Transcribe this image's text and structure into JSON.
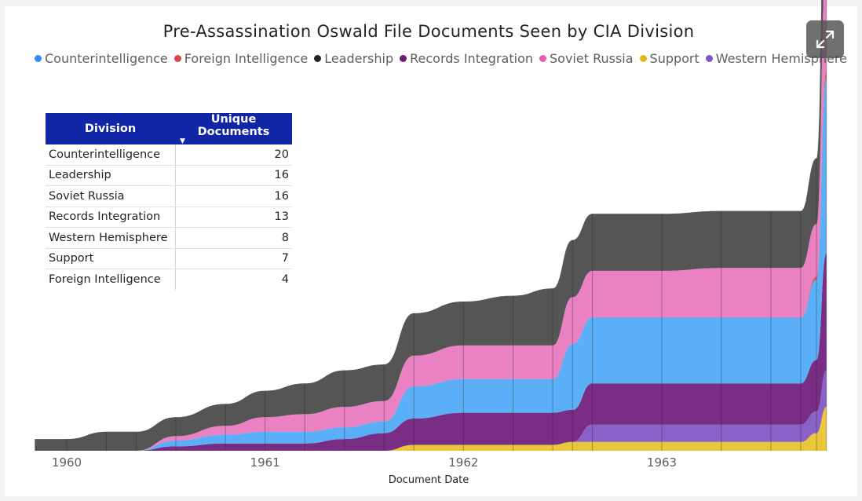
{
  "chart_data": {
    "type": "area",
    "subtype": "ribbon (streamgraph) chart",
    "title": "Pre-Assassination Oswald File Documents Seen by CIA Division",
    "xlabel": "Document Date",
    "ylabel": "",
    "x_ticks": [
      "1960",
      "1961",
      "1962",
      "1963"
    ],
    "legend_position": "top",
    "x": [
      1959.84,
      1960.0,
      1960.2,
      1960.35,
      1960.55,
      1960.8,
      1961.0,
      1961.2,
      1961.4,
      1961.6,
      1961.75,
      1962.0,
      1962.25,
      1962.45,
      1962.55,
      1962.65,
      1963.0,
      1963.3,
      1963.55,
      1963.7,
      1963.78,
      1963.83
    ],
    "ylim": [
      0,
      24
    ],
    "series": [
      {
        "name": "Support",
        "color": "#e8c12a",
        "values": [
          0,
          0,
          0,
          0,
          0,
          0,
          0,
          0,
          0,
          0,
          0.4,
          0.4,
          0.4,
          0.4,
          0.6,
          0.6,
          0.6,
          0.6,
          0.6,
          0.6,
          1.2,
          3.0
        ]
      },
      {
        "name": "Western Hemisphere",
        "color": "#7f55c2",
        "values": [
          0,
          0,
          0,
          0,
          0,
          0,
          0,
          0,
          0,
          0,
          0,
          0,
          0,
          0,
          0,
          1.2,
          1.2,
          1.2,
          1.2,
          1.2,
          1.5,
          2.5
        ]
      },
      {
        "name": "Records Integration",
        "color": "#6e1b7a",
        "values": [
          0,
          0,
          0,
          0,
          0.3,
          0.5,
          0.5,
          0.5,
          0.8,
          1.2,
          1.8,
          2.2,
          2.2,
          2.2,
          2.2,
          2.8,
          2.8,
          2.8,
          2.8,
          2.8,
          3.5,
          8.0
        ]
      },
      {
        "name": "Counterintelligence",
        "color": "#4da8f5",
        "values": [
          0,
          0,
          0,
          0,
          0.4,
          0.6,
          0.8,
          0.8,
          0.8,
          0.8,
          2.2,
          2.3,
          2.3,
          2.3,
          4.5,
          4.5,
          4.5,
          4.5,
          4.5,
          4.5,
          5.5,
          12.0
        ]
      },
      {
        "name": "Foreign Intelligence",
        "color": "#d64550",
        "values": [
          0,
          0,
          0,
          0,
          0,
          0,
          0,
          0,
          0,
          0,
          0,
          0,
          0,
          0,
          0,
          0,
          0,
          0,
          0,
          0,
          0.2,
          0.5
        ]
      },
      {
        "name": "Soviet Russia",
        "color": "#e776be",
        "values": [
          0,
          0,
          0,
          0,
          0.3,
          0.6,
          1.0,
          1.2,
          1.4,
          1.4,
          2.1,
          2.3,
          2.3,
          2.3,
          3.2,
          3.2,
          3.2,
          3.4,
          3.4,
          3.4,
          3.6,
          8.0
        ]
      },
      {
        "name": "Leadership",
        "color": "#474747",
        "values": [
          0.8,
          0.8,
          1.3,
          1.3,
          1.3,
          1.5,
          1.8,
          2.1,
          2.5,
          2.5,
          2.9,
          3.0,
          3.4,
          3.9,
          3.9,
          3.9,
          3.9,
          3.9,
          3.9,
          3.9,
          4.5,
          9.0
        ]
      }
    ]
  },
  "legend": [
    {
      "label": "Counterintelligence",
      "color": "#2f8ef0"
    },
    {
      "label": "Foreign Intelligence",
      "color": "#d64550"
    },
    {
      "label": "Leadership",
      "color": "#252423"
    },
    {
      "label": "Records Integration",
      "color": "#6e1b7a"
    },
    {
      "label": "Soviet Russia",
      "color": "#e35fb6"
    },
    {
      "label": "Support",
      "color": "#e0b81c"
    },
    {
      "label": "Western Hemisphere",
      "color": "#7f55c2"
    }
  ],
  "table": {
    "headers": {
      "division": "Division",
      "documents": "Unique Documents"
    },
    "rows": [
      {
        "division": "Counterintelligence",
        "documents": "20"
      },
      {
        "division": "Leadership",
        "documents": "16"
      },
      {
        "division": "Soviet Russia",
        "documents": "16"
      },
      {
        "division": "Records Integration",
        "documents": "13"
      },
      {
        "division": "Western Hemisphere",
        "documents": "8"
      },
      {
        "division": "Support",
        "documents": "7"
      },
      {
        "division": "Foreign Intelligence",
        "documents": "4"
      }
    ]
  },
  "expand_icon": "expand-icon"
}
